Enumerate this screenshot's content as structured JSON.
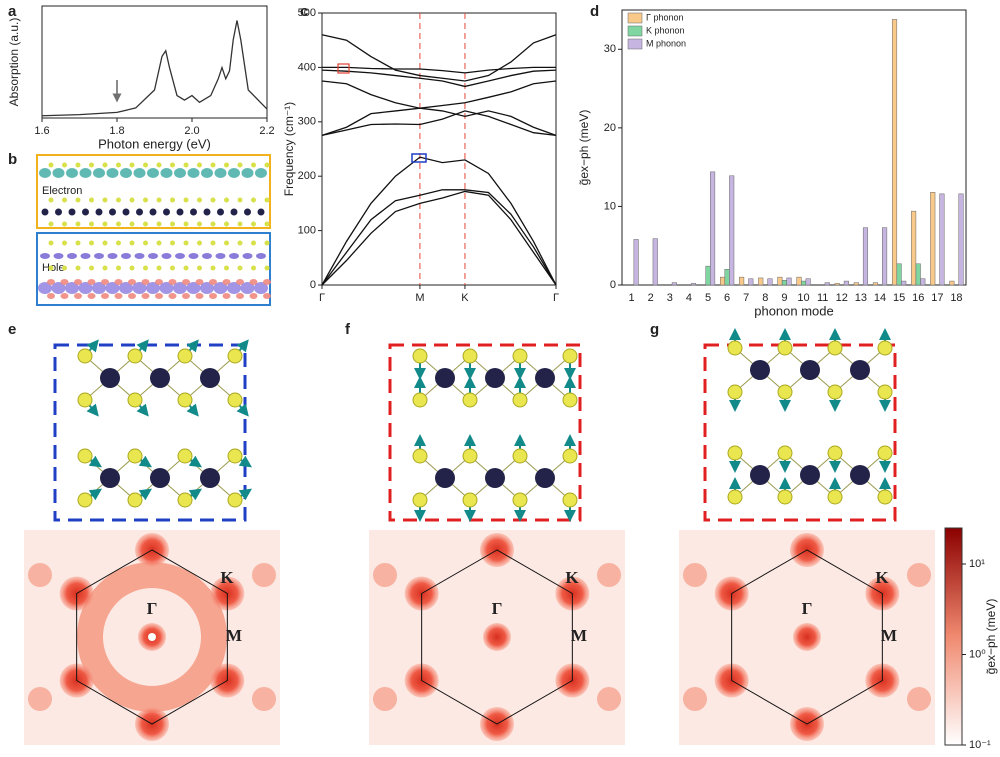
{
  "chart_data": [
    {
      "type": "line",
      "label": "a",
      "xlabel": "Photon energy (eV)",
      "ylabel": "Absorption (a.u.)",
      "xlim": [
        1.6,
        2.2
      ],
      "xticks": [
        1.6,
        1.8,
        {
          "value": 2,
          "label": "2.0"
        },
        2.2
      ],
      "ylim": [
        0,
        1
      ],
      "x": [
        1.6,
        1.7,
        1.8,
        1.85,
        1.9,
        1.92,
        1.93,
        1.94,
        1.96,
        1.98,
        2.0,
        2.02,
        2.05,
        2.07,
        2.08,
        2.09,
        2.1,
        2.11,
        2.12,
        2.13,
        2.15,
        2.2
      ],
      "series": [
        {
          "color": "#333333",
          "values": [
            0.02,
            0.03,
            0.05,
            0.09,
            0.25,
            0.55,
            0.6,
            0.45,
            0.2,
            0.16,
            0.2,
            0.14,
            0.2,
            0.35,
            0.45,
            0.35,
            0.42,
            0.7,
            0.87,
            0.7,
            0.25,
            0.08
          ]
        }
      ]
    },
    {
      "type": "line",
      "label": "c",
      "ylabel": "Frequency (cm⁻¹)",
      "xlim": [
        0,
        2.39
      ],
      "xticks": [
        {
          "value": 0,
          "label": "Γ"
        },
        {
          "value": 1,
          "label": "M"
        },
        {
          "value": 1.46,
          "label": "K"
        },
        {
          "value": 2.39,
          "label": "Γ"
        }
      ],
      "xgrid": true,
      "grid_color": "#e8473a",
      "ylim": [
        0,
        500
      ],
      "yticks": [
        0,
        100,
        200,
        300,
        400,
        500
      ],
      "x": [
        0,
        0.25,
        0.5,
        0.75,
        1.0,
        1.23,
        1.46,
        1.7,
        1.93,
        2.16,
        2.39
      ],
      "series": [
        {
          "color": "#111111",
          "values": [
            0,
            45,
            95,
            135,
            150,
            160,
            172,
            165,
            120,
            60,
            0
          ]
        },
        {
          "color": "#111111",
          "values": [
            0,
            60,
            120,
            155,
            165,
            175,
            175,
            170,
            130,
            70,
            0
          ]
        },
        {
          "color": "#111111",
          "values": [
            0,
            80,
            150,
            200,
            235,
            225,
            230,
            205,
            150,
            80,
            0
          ]
        },
        {
          "color": "#111111",
          "values": [
            275,
            285,
            295,
            296,
            295,
            305,
            320,
            310,
            295,
            280,
            275
          ]
        },
        {
          "color": "#111111",
          "values": [
            275,
            290,
            315,
            320,
            325,
            320,
            310,
            320,
            310,
            290,
            275
          ]
        },
        {
          "color": "#111111",
          "values": [
            375,
            370,
            350,
            335,
            325,
            330,
            335,
            345,
            355,
            370,
            375
          ]
        },
        {
          "color": "#111111",
          "values": [
            460,
            450,
            420,
            395,
            385,
            380,
            375,
            385,
            410,
            445,
            460
          ]
        },
        {
          "color": "#111111",
          "values": [
            400,
            400,
            398,
            397,
            397,
            394,
            390,
            395,
            398,
            400,
            400
          ]
        },
        {
          "color": "#111111",
          "values": [
            395,
            393,
            390,
            385,
            380,
            375,
            365,
            375,
            385,
            393,
            395
          ]
        }
      ]
    },
    {
      "type": "bar",
      "label": "d",
      "xlabel": "phonon mode",
      "ylabel": "g̃ex−ph (meV)",
      "categories": [
        "1",
        "2",
        "3",
        "4",
        "5",
        "6",
        "7",
        "8",
        "9",
        "10",
        "11",
        "12",
        "13",
        "14",
        "15",
        "16",
        "17",
        "18"
      ],
      "ylim": [
        0,
        35
      ],
      "yticks": [
        0,
        10,
        20,
        30
      ],
      "legend": "upper left",
      "series": [
        {
          "name": "Γ phonon",
          "color": "#f9c98a",
          "values": [
            0,
            0,
            0,
            0,
            0,
            1.0,
            1.0,
            0.9,
            1.0,
            1.0,
            0,
            0.2,
            0.3,
            0.3,
            33.8,
            9.4,
            11.8,
            0.5
          ]
        },
        {
          "name": "K phonon",
          "color": "#7fd6a0",
          "values": [
            0,
            0,
            0,
            0,
            2.4,
            2.0,
            0,
            0,
            0.6,
            0.5,
            0,
            0,
            0,
            0,
            2.7,
            2.7,
            0,
            0
          ]
        },
        {
          "name": "M phonon",
          "color": "#c6b5e0",
          "values": [
            5.8,
            5.9,
            0.3,
            0.2,
            14.4,
            13.9,
            0.8,
            0.8,
            0.9,
            0.8,
            0.3,
            0.5,
            7.3,
            7.3,
            0.5,
            0.8,
            11.6,
            11.6
          ]
        }
      ]
    },
    {
      "type": "colorbar",
      "ylabel": "g̃ex−ph (meV)",
      "log": true,
      "ylim": [
        0.1,
        25
      ],
      "yticks": [
        {
          "value": 0.1,
          "label": "10⁻¹"
        },
        {
          "value": 1,
          "label": "10⁰"
        },
        {
          "value": 10,
          "label": "10¹"
        }
      ]
    }
  ],
  "panels": {
    "b": {
      "label": "b",
      "electron": "Electron",
      "hole": "Hole"
    },
    "e": {
      "label": "e",
      "gamma": "Γ",
      "k": "K",
      "m": "M"
    },
    "f": {
      "label": "f",
      "gamma": "Γ",
      "k": "K",
      "m": "M"
    },
    "g": {
      "label": "g",
      "gamma": "Γ",
      "k": "K",
      "m": "M"
    }
  }
}
